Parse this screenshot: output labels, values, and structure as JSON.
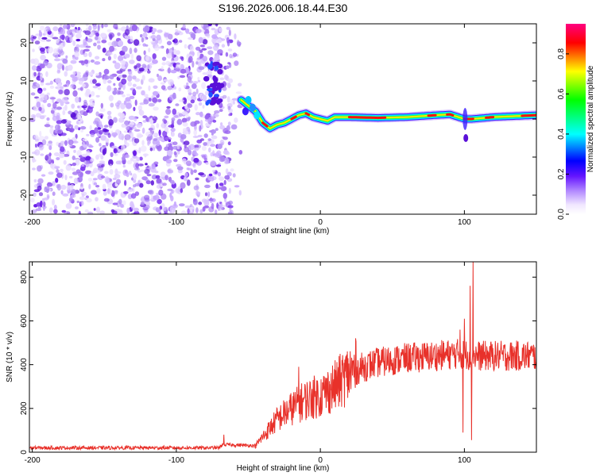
{
  "chart_data": [
    {
      "type": "heatmap",
      "title": "S196.2026.006.18.44.E30",
      "xlabel": "Height of straight line (km)",
      "ylabel": "Frequency (Hz)",
      "xlim": [
        -202,
        150
      ],
      "ylim": [
        -25,
        25
      ],
      "xticks": [
        -200,
        -100,
        0,
        100
      ],
      "yticks": [
        -20,
        -10,
        0,
        10,
        20
      ],
      "colorbar": {
        "label": "Normalized spectral amplitude",
        "range": [
          0,
          0.95
        ],
        "ticks": [
          "0.0",
          "0.2",
          "0.4",
          "0.6",
          "0.8"
        ],
        "colormap": [
          "#ffffff",
          "#f0e6ff",
          "#b48cff",
          "#6414ff",
          "#0000ff",
          "#00ffff",
          "#00ff00",
          "#ffff00",
          "#ff0000",
          "#ff0080"
        ]
      },
      "noise_region": [
        -200,
        -55
      ],
      "ridge": [
        [
          -55,
          5
        ],
        [
          -50,
          3.5
        ],
        [
          -45,
          2
        ],
        [
          -40,
          -1
        ],
        [
          -35,
          -2.5
        ],
        [
          -30,
          -1.5
        ],
        [
          -25,
          -1
        ],
        [
          -20,
          0
        ],
        [
          -15,
          1
        ],
        [
          -10,
          1.5
        ],
        [
          -5,
          0.5
        ],
        [
          0,
          0
        ],
        [
          5,
          -0.5
        ],
        [
          10,
          0.5
        ],
        [
          20,
          0.5
        ],
        [
          40,
          0.3
        ],
        [
          60,
          0.5
        ],
        [
          80,
          1
        ],
        [
          90,
          1.2
        ],
        [
          100,
          0
        ],
        [
          105,
          0
        ],
        [
          120,
          0.5
        ],
        [
          150,
          1
        ]
      ]
    },
    {
      "type": "line",
      "title": "",
      "xlabel": "Height of straight line (km)",
      "ylabel": "SNR (10 * v/v)",
      "xlim": [
        -202,
        150
      ],
      "ylim": [
        0,
        870
      ],
      "xticks": [
        -200,
        -100,
        0,
        100
      ],
      "yticks": [
        0,
        200,
        400,
        600,
        800
      ],
      "color": "#e8312a",
      "envelope": [
        [
          -202,
          20
        ],
        [
          -70,
          20
        ],
        [
          -68,
          35
        ],
        [
          -45,
          30
        ],
        [
          -40,
          70
        ],
        [
          -30,
          150
        ],
        [
          -20,
          200
        ],
        [
          -10,
          240
        ],
        [
          0,
          260
        ],
        [
          10,
          300
        ],
        [
          20,
          360
        ],
        [
          30,
          390
        ],
        [
          40,
          410
        ],
        [
          60,
          430
        ],
        [
          80,
          440
        ],
        [
          95,
          450
        ],
        [
          110,
          440
        ],
        [
          150,
          440
        ]
      ],
      "spikes": [
        [
          -67,
          80
        ],
        [
          -15,
          390
        ],
        [
          -5,
          330
        ],
        [
          97,
          560
        ],
        [
          99,
          90
        ],
        [
          100,
          610
        ],
        [
          104,
          760
        ],
        [
          105,
          55
        ],
        [
          106,
          870
        ]
      ]
    }
  ]
}
